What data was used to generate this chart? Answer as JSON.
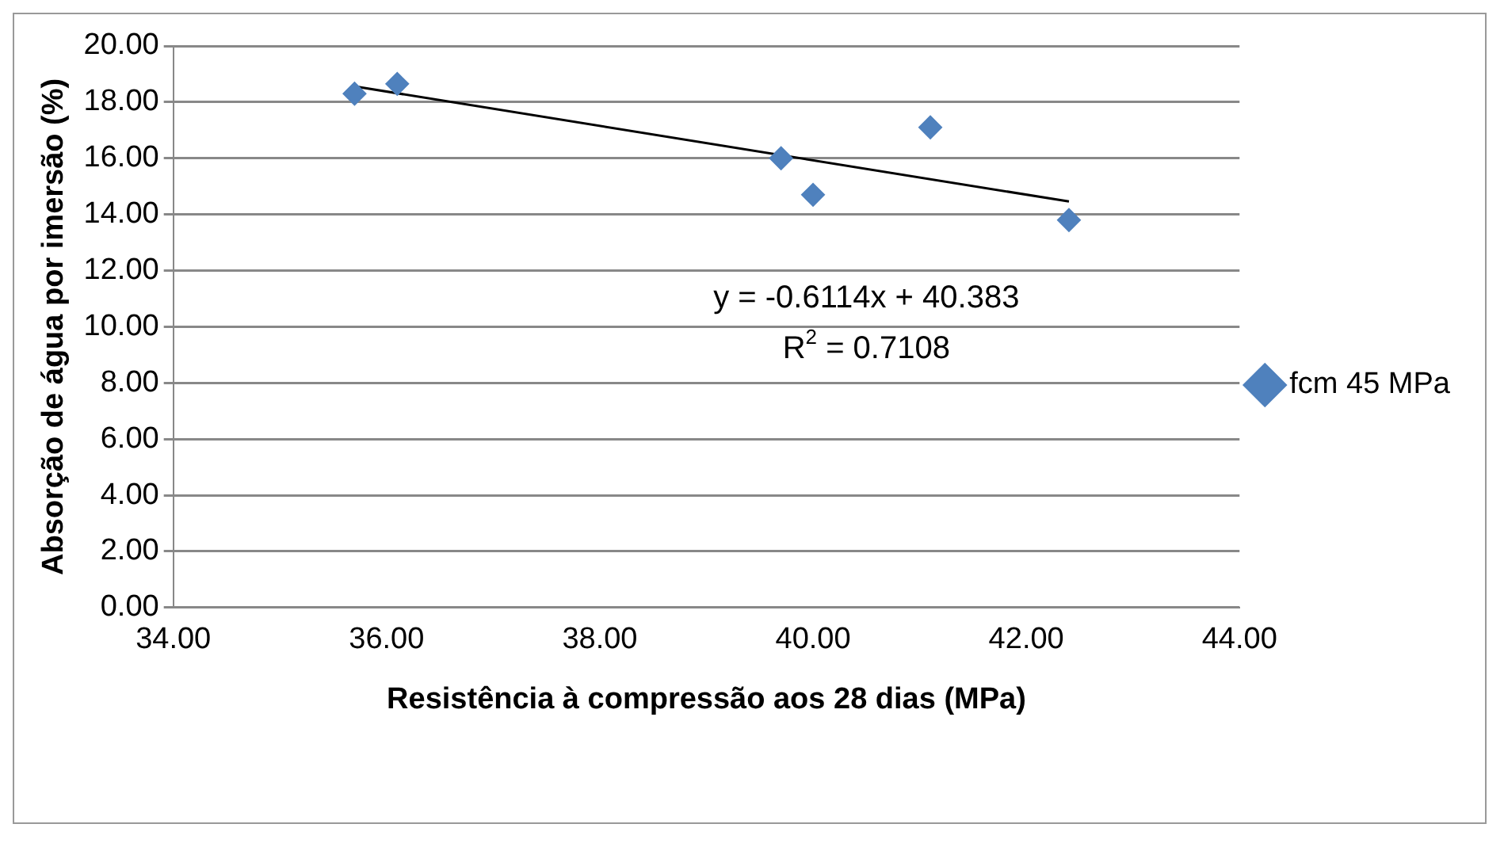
{
  "chart_data": {
    "type": "scatter",
    "xlabel": "Resistência à compressão aos 28 dias (MPa)",
    "ylabel": "Absorção de água por imersão (%)",
    "xlim": [
      34,
      44
    ],
    "xticks": [
      {
        "value": 34,
        "label": "34.00"
      },
      {
        "value": 36,
        "label": "36.00"
      },
      {
        "value": 38,
        "label": "38.00"
      },
      {
        "value": 40,
        "label": "40.00"
      },
      {
        "value": 42,
        "label": "42.00"
      },
      {
        "value": 44,
        "label": "44.00"
      }
    ],
    "ylim": [
      0,
      20
    ],
    "yticks": [
      {
        "value": 0,
        "label": "0.00"
      },
      {
        "value": 2,
        "label": "2.00"
      },
      {
        "value": 4,
        "label": "4.00"
      },
      {
        "value": 6,
        "label": "6.00"
      },
      {
        "value": 8,
        "label": "8.00"
      },
      {
        "value": 10,
        "label": "10.00"
      },
      {
        "value": 12,
        "label": "12.00"
      },
      {
        "value": 14,
        "label": "14.00"
      },
      {
        "value": 16,
        "label": "16.00"
      },
      {
        "value": 18,
        "label": "18.00"
      },
      {
        "value": 20,
        "label": "20.00"
      }
    ],
    "grid": "y",
    "legend": "right",
    "marker": "diamond",
    "series": [
      {
        "name": "fcm 45 MPa",
        "color": "#4f81bd",
        "x": [
          35.7,
          36.1,
          39.7,
          40.0,
          41.1,
          42.4
        ],
        "values": [
          18.3,
          18.65,
          16.0,
          14.7,
          17.1,
          13.8
        ]
      },
      {
        "type": "line",
        "color": "#000000",
        "x": [
          35.7,
          42.4
        ],
        "values": [
          18.56,
          14.46
        ],
        "marker": "none"
      }
    ],
    "annotations": [
      "y = -0.6114x + 40.383",
      "R$^{2}$ = 0.7108"
    ]
  }
}
